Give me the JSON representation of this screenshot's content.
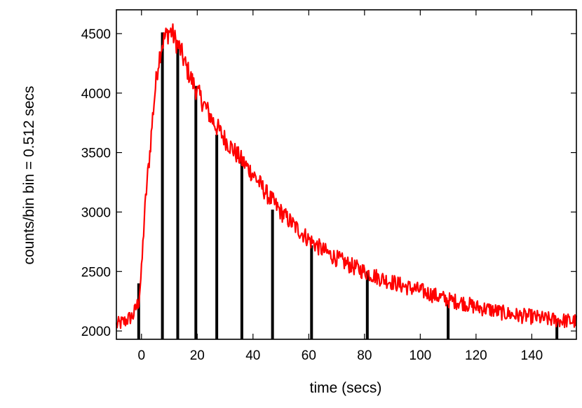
{
  "chart_data": {
    "type": "line",
    "title": "",
    "xlabel": "time (secs)",
    "ylabel": "counts/bin bin = 0.512 secs",
    "xlim": [
      -9,
      156
    ],
    "ylim": [
      1930,
      4700
    ],
    "x_ticks": [
      0,
      20,
      40,
      60,
      80,
      100,
      120,
      140
    ],
    "y_ticks": [
      2000,
      2500,
      3000,
      3500,
      4000,
      4500
    ],
    "grid": false,
    "legend": "none",
    "series": [
      {
        "type": "line",
        "color": "#ff0000",
        "x": [
          -9,
          -6,
          -3,
          -1,
          0,
          1,
          2,
          3,
          4,
          5,
          6,
          7,
          8,
          9,
          10,
          11,
          12,
          14,
          16,
          18,
          20,
          23,
          26,
          30,
          35,
          40,
          45,
          50,
          55,
          60,
          65,
          70,
          75,
          80,
          85,
          90,
          95,
          100,
          105,
          110,
          115,
          120,
          125,
          130,
          135,
          140,
          145,
          150,
          156
        ],
        "y": [
          2050,
          2080,
          2130,
          2250,
          2500,
          2950,
          3250,
          3500,
          3800,
          4050,
          4250,
          4380,
          4450,
          4490,
          4520,
          4510,
          4450,
          4360,
          4220,
          4110,
          4010,
          3880,
          3750,
          3610,
          3460,
          3320,
          3150,
          3000,
          2880,
          2770,
          2680,
          2610,
          2550,
          2500,
          2450,
          2410,
          2370,
          2340,
          2300,
          2260,
          2240,
          2200,
          2180,
          2150,
          2130,
          2120,
          2100,
          2090,
          2080
        ]
      },
      {
        "type": "impulse",
        "color": "#000000",
        "x": [
          -1,
          7.5,
          13,
          19.5,
          27,
          36,
          47,
          61,
          81,
          110,
          149
        ],
        "y": [
          2400,
          4510,
          4390,
          4060,
          3650,
          3440,
          3020,
          2720,
          2500,
          2240,
          2100
        ]
      }
    ]
  }
}
